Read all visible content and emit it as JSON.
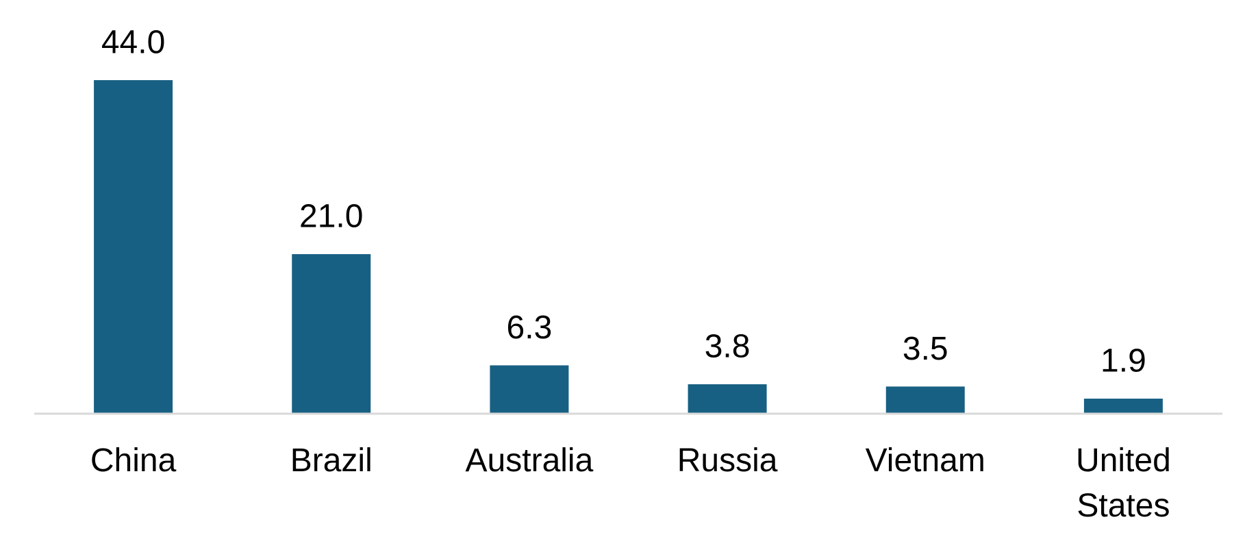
{
  "chart_data": {
    "type": "bar",
    "categories": [
      "China",
      "Brazil",
      "Australia",
      "Russia",
      "Vietnam",
      "United States"
    ],
    "values": [
      44.0,
      21.0,
      6.3,
      3.8,
      3.5,
      1.9
    ],
    "value_labels": [
      "44.0",
      "21.0",
      "6.3",
      "3.8",
      "3.5",
      "1.9"
    ],
    "color": "#186083"
  }
}
